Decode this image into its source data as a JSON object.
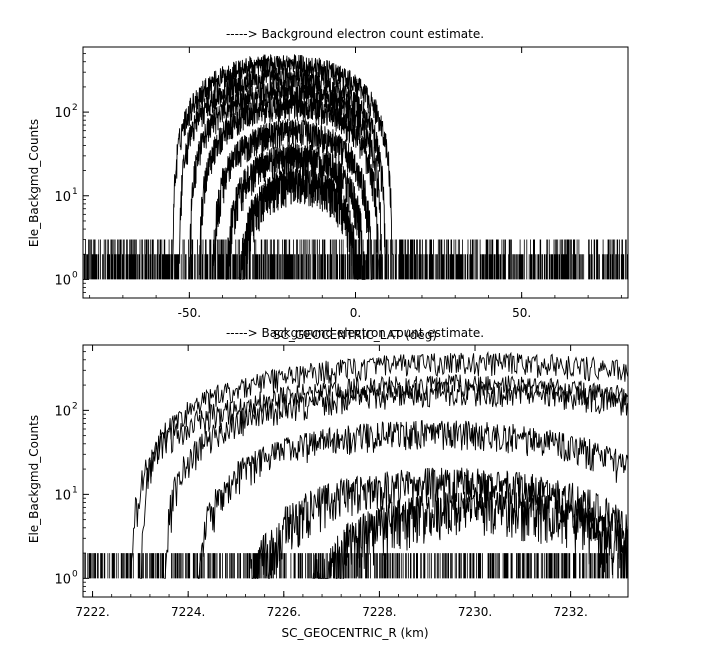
{
  "chart_data": [
    {
      "type": "scatter",
      "title": "-----> Background electron count estimate.",
      "xlabel": "SC_GEOCENTRIC_LAT (deg)",
      "ylabel": "Ele_Backgmd_Counts",
      "xlim": [
        -82,
        82
      ],
      "ylim": [
        0.6,
        600
      ],
      "yscale": "log",
      "x_ticks": [
        -50,
        0,
        50
      ],
      "x_tick_labels": [
        "-50.",
        "0.",
        "50."
      ],
      "y_ticks": [
        1,
        10,
        100
      ],
      "y_tick_labels": [
        "10",
        "10",
        "10"
      ],
      "y_tick_exponents": [
        "0",
        "1",
        "2"
      ],
      "grid": false,
      "noise_floor": {
        "x_range": [
          -82,
          82
        ],
        "values": [
          1,
          2,
          3
        ]
      },
      "series": [
        {
          "center": -22,
          "peak": 380,
          "halfwidth": 33
        },
        {
          "center": -22,
          "peak": 260,
          "halfwidth": 31
        },
        {
          "center": -21,
          "peak": 180,
          "halfwidth": 29
        },
        {
          "center": -20,
          "peak": 120,
          "halfwidth": 27
        },
        {
          "center": -19,
          "peak": 60,
          "halfwidth": 24
        },
        {
          "center": -18,
          "peak": 30,
          "halfwidth": 21
        },
        {
          "center": -17,
          "peak": 15,
          "halfwidth": 18
        }
      ]
    },
    {
      "type": "scatter",
      "title": "-----> Background electron count estimate.",
      "xlabel": "SC_GEOCENTRIC_R (km)",
      "ylabel": "Ele_Backgmd_Counts",
      "xlim": [
        7221.8,
        7233.2
      ],
      "ylim": [
        0.6,
        600
      ],
      "yscale": "log",
      "x_ticks": [
        7222,
        7224,
        7226,
        7228,
        7230,
        7232
      ],
      "x_tick_labels": [
        "7222.",
        "7224.",
        "7226.",
        "7228.",
        "7230.",
        "7232."
      ],
      "y_ticks": [
        1,
        10,
        100
      ],
      "y_tick_labels": [
        "10",
        "10",
        "10"
      ],
      "y_tick_exponents": [
        "0",
        "1",
        "2"
      ],
      "grid": false,
      "noise_floor": {
        "x_range": [
          7221.8,
          7233.2
        ],
        "values": [
          1,
          2
        ]
      },
      "series": [
        {
          "center": 7230.0,
          "peak": 370,
          "halfwidth": 7.0
        },
        {
          "center": 7229.6,
          "peak": 200,
          "halfwidth": 6.8
        },
        {
          "center": 7229.9,
          "peak": 165,
          "halfwidth": 6.4
        },
        {
          "center": 7229.2,
          "peak": 55,
          "halfwidth": 5.0
        },
        {
          "center": 7229.5,
          "peak": 14,
          "halfwidth": 4.2
        },
        {
          "center": 7230.2,
          "peak": 7,
          "halfwidth": 3.6
        }
      ]
    }
  ]
}
